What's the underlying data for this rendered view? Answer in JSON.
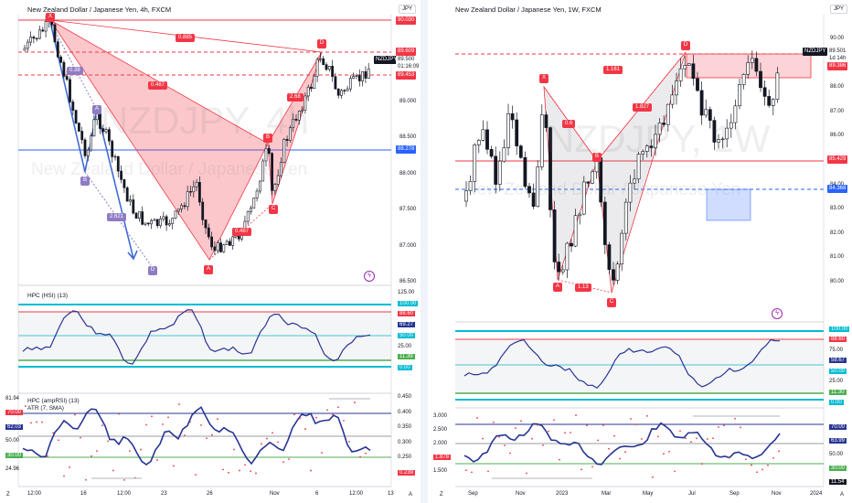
{
  "left": {
    "title": "New Zealand Dollar / Japanese Yen, 4h, FXCM",
    "watermark_big": "NZDJPY, 4h",
    "watermark_small": "New Zealand Dollar / Japanese Yen",
    "currency": "JPY",
    "price_ticks": [
      "89.500",
      "89.000",
      "88.500",
      "88.000",
      "87.500",
      "87.000",
      "86.500"
    ],
    "price_tags": {
      "top": "90.030",
      "upper": "89.609",
      "last": "89.500",
      "timer": "01:16:09",
      "low": "89.453",
      "blue": "88.278",
      "symbol": "NZDJPY"
    },
    "x_ticks": [
      "12:00",
      "16",
      "12:00",
      "23",
      "26",
      "Nov",
      "6",
      "12:00",
      "13"
    ],
    "points": [
      "X",
      "A",
      "B",
      "C",
      "D"
    ],
    "ratios": {
      "xd": "0.885",
      "ab": "0.487",
      "bc": "0.487",
      "cd": "2.68"
    },
    "small_points": [
      "A",
      "B",
      "C",
      "D"
    ],
    "small_ratios": {
      "ab": "0.38",
      "bc": "2.621"
    },
    "hsi": {
      "name": "HPC (HSI) (13)",
      "ticks": [
        "125.00",
        "100.00",
        "88.60",
        "69.27",
        "50.00",
        "25.00",
        "11.39",
        "0.00"
      ]
    },
    "amp": {
      "name": "HPC (ampRSI) (13)",
      "atr": "ATR (7, SMA)",
      "left_ticks": [
        "81.94",
        "70.00",
        "62.03",
        "50.00",
        "30.00",
        "24.96"
      ],
      "right_ticks": [
        "0.450",
        "0.400",
        "0.350",
        "0.300",
        "0.250",
        "0.239"
      ]
    },
    "colors": {
      "bull": "#131722",
      "bear": "#131722",
      "harmonic": "#f23645",
      "harmonic_fill": "rgba(242,54,69,0.28)",
      "blue_pattern": "#3f6bd6",
      "purple": "#8e7cc3"
    }
  },
  "right": {
    "title": "New Zealand Dollar / Japanese Yen, 1W, FXCM",
    "watermark_big": "NZDJPY, 1W",
    "watermark_small": "New Zealand Dollar / Japanese Yen",
    "currency": "JPY",
    "price_ticks": [
      "90.00",
      "89.00",
      "88.00",
      "87.00",
      "86.00",
      "85.00",
      "84.00",
      "83.00",
      "82.00",
      "81.00",
      "80.00"
    ],
    "price_tags": {
      "symbol": "NZDJPY",
      "last": "89.501",
      "timer": "1d 14h",
      "red_zone": "89.386",
      "level1": "85.429",
      "level2": "84.368"
    },
    "x_ticks": [
      "Sep",
      "Nov",
      "2023",
      "Mar",
      "May",
      "Jul",
      "Sep",
      "Nov",
      "2024"
    ],
    "points": [
      "X",
      "A",
      "B",
      "C",
      "D"
    ],
    "ratios": {
      "xb": "0.6",
      "ac": "1.13",
      "bd": "1.161",
      "cd": "1.827"
    },
    "hsi_ticks": [
      "100.00",
      "88.60",
      "75.00",
      "58.67",
      "50.00",
      "25.00",
      "11.30",
      "0.00"
    ],
    "amp_left_ticks": [
      "3.000",
      "2.500",
      "2.000",
      "1.878",
      "1.500"
    ],
    "amp_right_ticks": [
      "78.49",
      "70.00",
      "63.99",
      "50.00",
      "30.00",
      "11.54"
    ]
  }
}
